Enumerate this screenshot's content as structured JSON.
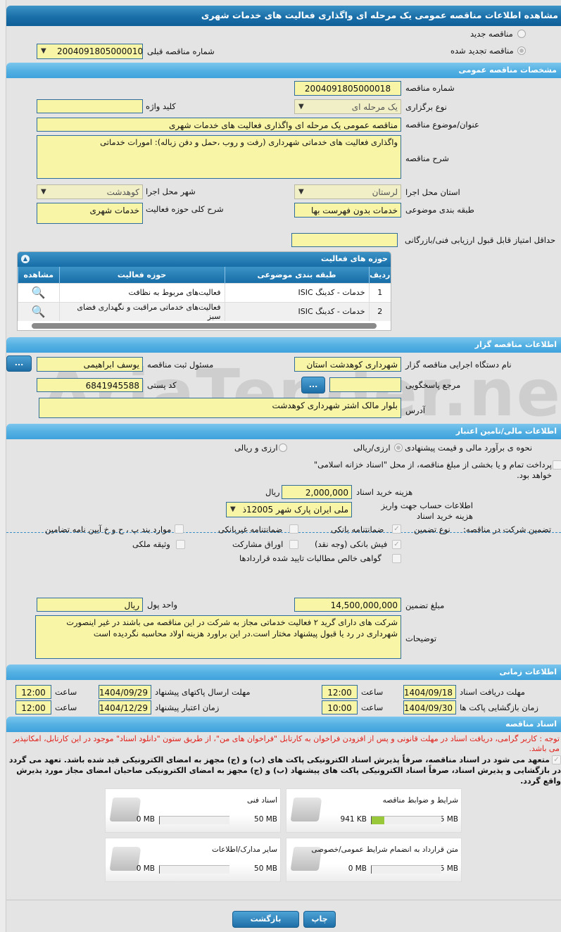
{
  "title": "مشاهده اطلاعات مناقصه عمومی یک مرحله ای واگذاری فعالیت های خدمات شهری",
  "watermark": "AriaTender.neT",
  "top": {
    "new_tender": "مناقصه جدید",
    "renewed_tender": "مناقصه تجدید شده",
    "renewed_selected": true,
    "prev_number_label": "شماره مناقصه قبلی",
    "prev_number": "2004091805000010"
  },
  "general": {
    "header": "مشخصات مناقصه عمومی",
    "number_label": "شماره مناقصه",
    "number": "2004091805000018",
    "type_label": "نوع برگزاری",
    "type": "یک مرحله ای",
    "keyword_label": "کلید واژه",
    "keyword": "",
    "subject_label": "عنوان/موضوع مناقصه",
    "subject": "مناقصه عمومی یک مرحله ای واگذاری فعالیت های خدمات شهری",
    "desc_label": "شرح مناقصه",
    "desc": "واگذاری فعالیت های خدماتی شهرداری (رفت و روب ،حمل و دفن زباله): امورات خدماتی",
    "province_label": "استان محل اجرا",
    "province": "لرستان",
    "city_label": "شهر محل اجرا",
    "city": "کوهدشت",
    "category_label": "طبقه بندی موضوعی",
    "category": "خدمات بدون فهرست بها",
    "scope_label": "شرح کلی حوزه فعالیت",
    "scope": "خدمات شهری",
    "min_score_label": "حداقل امتیاز قابل قبول ارزیابی فنی/بازرگانی",
    "min_score": ""
  },
  "activities": {
    "header": "حوزه های فعالیت",
    "columns": [
      "ردیف",
      "طبقه بندی موضوعی",
      "حوزه فعالیت",
      "مشاهده"
    ],
    "rows": [
      {
        "no": "1",
        "category": "خدمات - کدینگ ISIC",
        "field": "فعالیت‌های مربوط به نظافت"
      },
      {
        "no": "2",
        "category": "خدمات - کدینگ ISIC",
        "field": "فعالیت‌های خدماتی مراقبت و نگهداری فضای سبز"
      }
    ]
  },
  "org": {
    "header": "اطلاعات مناقصه گزار",
    "name_label": "نام دستگاه اجرایی مناقصه گزار",
    "name": "شهرداری کوهدشت استان",
    "resp_label": "مسئول ثبت مناقصه",
    "resp": "یوسف ابراهیمی",
    "ref_label": "مرجع پاسخگویی",
    "ref": "",
    "postal_label": "کد پستی",
    "postal": "6841945588",
    "address_label": "آدرس",
    "address": "بلوار مالک اشتر شهرداری کوهدشت",
    "more": "..."
  },
  "finance": {
    "header": "اطلاعات مالی/تامین اعتبار",
    "method_label": "نحوه ی برآورد مالی و قیمت پیشنهادی",
    "opt1": "ارزی/ریالی",
    "opt2": "ارزی و ریالی",
    "treasury": "پرداخت تمام و یا بخشی از مبلغ مناقصه، از محل \"اسناد خزانه اسلامی\" خواهد بود.",
    "doc_cost_label": "هزینه خرید اسناد",
    "doc_cost": "2,000,000",
    "currency": "ریال",
    "account_label": "اطلاعات حساب جهت واریز هزینه خرید اسناد",
    "account": "ملی ایران پارک شهر 12005ذ"
  },
  "guarantee": {
    "label": "تضمین شرکت در مناقصه:",
    "type_label": "نوع تضمین",
    "options": [
      {
        "label": "ضمانتنامه بانکی",
        "checked": true
      },
      {
        "label": "ضمانتنامه غیربانکی",
        "checked": false
      },
      {
        "label": "موارد بند پ ، ح و خ آیین نامه تضامین",
        "checked": false
      },
      {
        "label": "فیش بانکی (وجه نقد)",
        "checked": true
      },
      {
        "label": "اوراق مشارکت",
        "checked": false
      },
      {
        "label": "وثیقه ملکی",
        "checked": false
      },
      {
        "label": "گواهی خالص مطالبات تایید شده قراردادها",
        "checked": false
      }
    ],
    "amount_label": "مبلغ تضمین",
    "amount": "14,500,000,000",
    "unit_label": "واحد پول",
    "unit": "ریال",
    "notes_label": "توضیحات",
    "notes": "شرکت های دارای گرید ۲ فعالیت خدماتی مجاز به شرکت در این مناقصه می باشند در غیر اینصورت شهرداری در رد یا قبول پیشنهاد مختار است.در این براورد هزینه اولاد محاسبه نگردیده است"
  },
  "time": {
    "header": "اطلاعات زمانی",
    "receive_label": "مهلت دریافت اسناد",
    "receive_date": "1404/09/18",
    "receive_time": "12:00",
    "send_label": "مهلت ارسال پاکتهای پیشنهاد",
    "send_date": "1404/09/29",
    "send_time": "12:00",
    "open_label": "زمان بازگشایی پاکت ها",
    "open_date": "1404/09/30",
    "open_time": "10:00",
    "valid_label": "زمان اعتبار پیشنهاد",
    "valid_date": "1404/12/29",
    "valid_time": "12:00",
    "hour": "ساعت"
  },
  "docs": {
    "header": "اسناد مناقصه",
    "notice": "توجه : کاربر گرامی، دریافت اسناد در مهلت قانونی و پس از افزودن فراخوان به کارتابل \"فراخوان های من\"، از طریق ستون \"دانلود اسناد\" موجود در این کارتابل، امکانپذیر می باشد.",
    "pledge": "متعهد می شود در اسناد مناقصه، صرفاً پذیرش اسناد الکترونیکی پاکت های (ب) و (ج) مجهز به امضای الکترونیکی قید شده باشد. تعهد می گردد در بازگشایی و پذیرش اسناد، صرفاً اسناد الکترونیکی پاکت های پیشنهاد (ب) و (ج) مجهز به امضای الکترونیکی صاحبان امضای مجاز مورد پذیرش واقع گردد.",
    "files": [
      {
        "name": "شرایط و ضوابط مناقصه",
        "size": "941 KB",
        "max": "5 MB",
        "fill": 0.18
      },
      {
        "name": "اسناد فنی",
        "size": "0 MB",
        "max": "50 MB",
        "fill": 0
      },
      {
        "name": "متن قرارداد به انضمام شرایط عمومی/خصوصی",
        "size": "0 MB",
        "max": "5 MB",
        "fill": 0
      },
      {
        "name": "سایر مدارک/اطلاعات",
        "size": "0 MB",
        "max": "50 MB",
        "fill": 0
      }
    ]
  },
  "buttons": {
    "print": "چاپ",
    "back": "بازگشت"
  }
}
